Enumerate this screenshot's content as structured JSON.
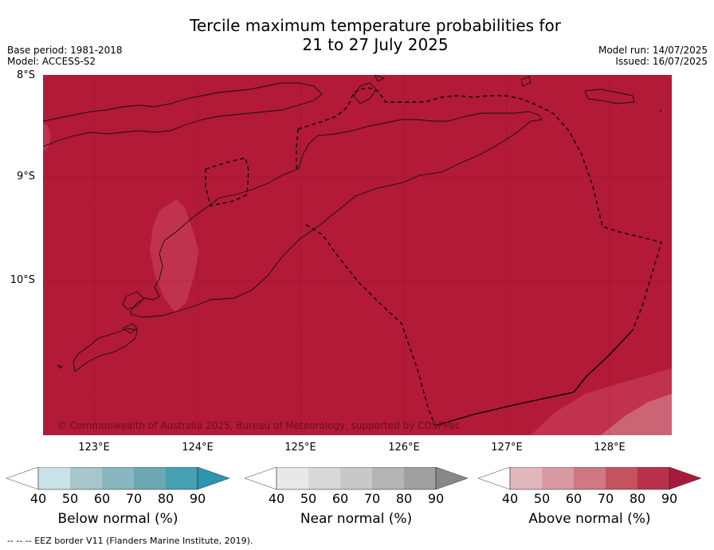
{
  "title": {
    "line1": "Tercile maximum temperature probabilities for",
    "line2": "21 to 27 July 2025"
  },
  "meta_left": {
    "base_period": "Base period: 1981-2018",
    "model": "Model: ACCESS-S2"
  },
  "meta_right": {
    "model_run": "Model run: 14/07/2025",
    "issued": "Issued: 16/07/2025"
  },
  "map": {
    "latitude_labels": [
      "8°S",
      "9°S",
      "10°S"
    ],
    "longitude_labels": [
      "123°E",
      "124°E",
      "125°E",
      "126°E",
      "127°E",
      "128°E"
    ],
    "copyright": "© Commonwealth of Australia 2025, Bureau of Meteorology, supported by COSPPac",
    "fill_colors": {
      "above_90": "#b21a37",
      "above_80": "#c1324e",
      "above_70": "#cb6474"
    }
  },
  "colorbars": [
    {
      "label": "Below normal (%)",
      "ticks": [
        "40",
        "50",
        "60",
        "70",
        "80",
        "90"
      ],
      "colors": [
        "#ffffff",
        "#c9e2e8",
        "#a6c6cb",
        "#8ab7bf",
        "#6ba8b4",
        "#45a0b2",
        "#2d95ad"
      ]
    },
    {
      "label": "Near normal (%)",
      "ticks": [
        "40",
        "50",
        "60",
        "70",
        "80",
        "90"
      ],
      "colors": [
        "#ffffff",
        "#e8e8e8",
        "#d8d8d8",
        "#c8c8c8",
        "#b4b4b4",
        "#a0a0a0",
        "#888888"
      ]
    },
    {
      "label": "Above normal (%)",
      "ticks": [
        "40",
        "50",
        "60",
        "70",
        "80",
        "90"
      ],
      "colors": [
        "#ffffff",
        "#e2b6bd",
        "#d999a2",
        "#cf7880",
        "#c5535f",
        "#b9314a",
        "#a8193a"
      ]
    }
  ],
  "footer": "--  --  -- EEZ border V11 (Flanders Marine Institute, 2019)."
}
